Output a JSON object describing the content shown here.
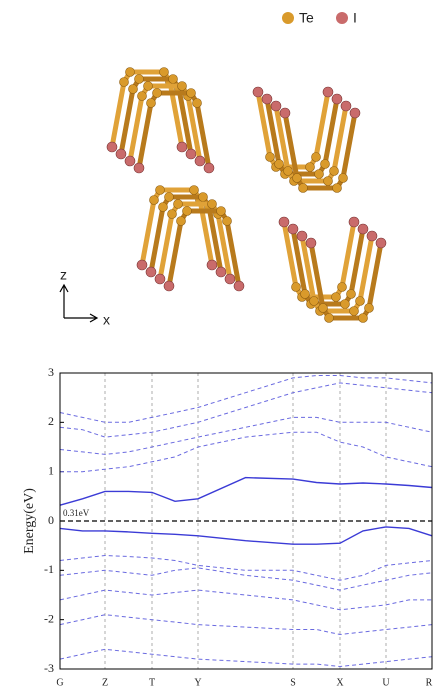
{
  "legend": {
    "items": [
      {
        "label": "Te",
        "color": "#d99a2b"
      },
      {
        "label": "I",
        "color": "#c96b6b"
      }
    ]
  },
  "axes_icon": {
    "vertical": "z",
    "horizontal": "x"
  },
  "chart_data": {
    "type": "line",
    "ylabel": "Energy(eV)",
    "annotation": "0.31eV",
    "ylim": [
      -3,
      3
    ],
    "yticks": [
      -3,
      -2,
      -1,
      0,
      1,
      2,
      3
    ],
    "xlim": [
      0,
      3.72
    ],
    "xticks": [
      {
        "value": 0,
        "label": "G"
      },
      {
        "value": 0.45,
        "label": "Z"
      },
      {
        "value": 0.92,
        "label": "T"
      },
      {
        "value": 1.38,
        "label": "Y"
      },
      {
        "value": 2.33,
        "label": "S"
      },
      {
        "value": 2.8,
        "label": "X"
      },
      {
        "value": 3.26,
        "label": "U"
      },
      {
        "value": 3.72,
        "label": "R"
      }
    ],
    "vertical_grid": true,
    "fermi_level": 0,
    "x": [
      0,
      0.225,
      0.45,
      0.685,
      0.92,
      1.15,
      1.38,
      1.855,
      2.33,
      2.565,
      2.8,
      3.03,
      3.26,
      3.49,
      3.72
    ],
    "series": [
      {
        "color": "#3b3bd6",
        "style": "solid",
        "values": [
          0.32,
          0.45,
          0.6,
          0.6,
          0.58,
          0.4,
          0.45,
          0.88,
          0.85,
          0.78,
          0.75,
          0.77,
          0.75,
          0.72,
          0.68
        ]
      },
      {
        "color": "#3b3bd6",
        "style": "solid",
        "values": [
          -0.15,
          -0.2,
          -0.2,
          -0.22,
          -0.25,
          -0.27,
          -0.3,
          -0.4,
          -0.47,
          -0.47,
          -0.45,
          -0.2,
          -0.12,
          -0.15,
          -0.3
        ]
      },
      {
        "color": "#6a6ae0",
        "style": "dashed",
        "values": [
          1.9,
          1.85,
          1.7,
          1.75,
          1.8,
          1.9,
          2.0,
          2.3,
          2.6,
          2.7,
          2.8,
          2.75,
          2.7,
          2.65,
          2.6
        ]
      },
      {
        "color": "#6a6ae0",
        "style": "dashed",
        "values": [
          2.2,
          2.1,
          2.0,
          2.0,
          2.1,
          2.2,
          2.3,
          2.6,
          2.9,
          2.95,
          2.95,
          2.9,
          2.9,
          2.85,
          2.8
        ]
      },
      {
        "color": "#6a6ae0",
        "style": "dashed",
        "values": [
          1.45,
          1.4,
          1.35,
          1.4,
          1.5,
          1.6,
          1.7,
          1.9,
          2.1,
          2.1,
          2.0,
          2.0,
          2.0,
          1.9,
          1.8
        ]
      },
      {
        "color": "#6a6ae0",
        "style": "dashed",
        "values": [
          1.0,
          1.0,
          1.05,
          1.1,
          1.2,
          1.3,
          1.5,
          1.7,
          1.8,
          1.8,
          1.6,
          1.5,
          1.3,
          1.2,
          1.1
        ]
      },
      {
        "color": "#6a6ae0",
        "style": "dashed",
        "values": [
          -0.8,
          -0.75,
          -0.7,
          -0.72,
          -0.75,
          -0.8,
          -0.9,
          -1.0,
          -1.0,
          -1.1,
          -1.2,
          -1.1,
          -0.9,
          -0.85,
          -0.8
        ]
      },
      {
        "color": "#6a6ae0",
        "style": "dashed",
        "values": [
          -1.1,
          -1.05,
          -1.0,
          -1.05,
          -1.1,
          -1.0,
          -0.95,
          -1.1,
          -1.2,
          -1.3,
          -1.4,
          -1.3,
          -1.2,
          -1.1,
          -1.05
        ]
      },
      {
        "color": "#6a6ae0",
        "style": "dashed",
        "values": [
          -1.6,
          -1.5,
          -1.4,
          -1.45,
          -1.5,
          -1.45,
          -1.4,
          -1.5,
          -1.6,
          -1.7,
          -1.8,
          -1.75,
          -1.7,
          -1.6,
          -1.6
        ]
      },
      {
        "color": "#6a6ae0",
        "style": "dashed",
        "values": [
          -2.1,
          -2.0,
          -1.9,
          -1.95,
          -2.0,
          -2.05,
          -2.1,
          -2.15,
          -2.2,
          -2.2,
          -2.3,
          -2.25,
          -2.2,
          -2.15,
          -2.1
        ]
      },
      {
        "color": "#6a6ae0",
        "style": "dashed",
        "values": [
          -2.8,
          -2.7,
          -2.6,
          -2.65,
          -2.7,
          -2.75,
          -2.8,
          -2.85,
          -2.9,
          -2.9,
          -2.95,
          -2.9,
          -2.85,
          -2.8,
          -2.75
        ]
      }
    ]
  }
}
